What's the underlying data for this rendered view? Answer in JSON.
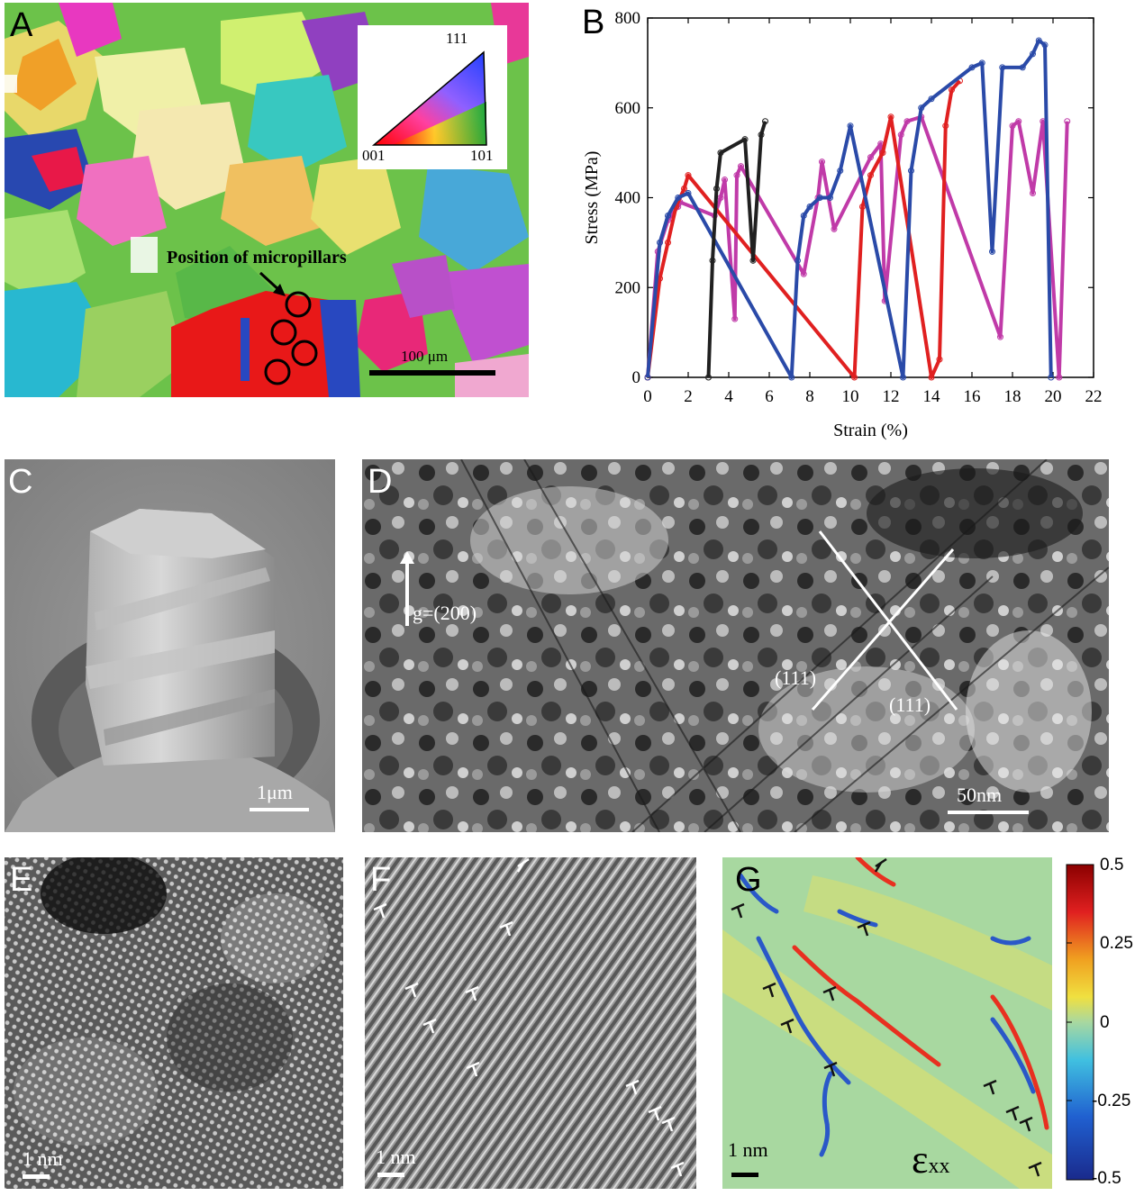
{
  "panels": {
    "A": {
      "label": "A",
      "annotation": "Position of micropillars",
      "scalebar": "100 μm",
      "ipf": {
        "top": "111",
        "left": "001",
        "right": "101"
      }
    },
    "B": {
      "label": "B"
    },
    "C": {
      "label": "C",
      "scalebar": "1μm"
    },
    "D": {
      "label": "D",
      "g_vector": "g=(200)",
      "plane1": "(111)",
      "plane2": "(111)",
      "scalebar": "50nm"
    },
    "E": {
      "label": "E",
      "scalebar": "1 nm"
    },
    "F": {
      "label": "F",
      "scalebar": "1 nm"
    },
    "G": {
      "label": "G",
      "scalebar": "1 nm",
      "symbol": "ε",
      "symbol_sub": "xx",
      "colorbar_ticks": [
        "0.5",
        "0.25",
        "0",
        "-0.25",
        "-0.5"
      ],
      "colors": {
        "high": "#8b0000",
        "mid": "#a8d8a0",
        "low": "#1a2a8c"
      }
    }
  },
  "chart_data": {
    "type": "line",
    "title": "",
    "xlabel": "Strain (%)",
    "ylabel": "Stress (MPa)",
    "xlim": [
      0,
      22
    ],
    "ylim": [
      0,
      800
    ],
    "xticks": [
      "0",
      "2",
      "4",
      "6",
      "8",
      "10",
      "12",
      "14",
      "16",
      "18",
      "20",
      "22"
    ],
    "yticks": [
      "0",
      "200",
      "400",
      "600",
      "800"
    ],
    "grid": false,
    "legend": "none",
    "series": [
      {
        "color": "#c03aa8",
        "x": [
          0,
          0.5,
          1.0,
          1.5,
          1.6,
          3.3,
          3.6,
          3.8,
          4.3,
          4.4,
          4.6,
          7.7,
          8.4,
          8.6,
          9.2,
          11.0,
          11.5,
          11.7,
          12.5,
          12.8,
          13.5,
          17.4,
          18.0,
          18.3,
          19.0,
          19.5,
          20.3,
          20.7
        ],
        "y": [
          0,
          280,
          350,
          380,
          390,
          360,
          400,
          440,
          130,
          450,
          470,
          230,
          400,
          480,
          330,
          490,
          520,
          170,
          540,
          570,
          580,
          90,
          560,
          570,
          410,
          570,
          0,
          570
        ]
      },
      {
        "color": "#e02020",
        "x": [
          0,
          0.6,
          1.0,
          1.4,
          1.8,
          2.0,
          10.2,
          10.6,
          11.0,
          11.6,
          12.0,
          14.0,
          14.4,
          14.7,
          15.0,
          15.4
        ],
        "y": [
          0,
          220,
          300,
          380,
          420,
          450,
          0,
          380,
          450,
          500,
          580,
          0,
          40,
          560,
          640,
          660
        ]
      },
      {
        "color": "#2a4aa8",
        "x": [
          0,
          0.6,
          1.0,
          1.5,
          2.0,
          7.1,
          7.4,
          7.7,
          8.0,
          8.5,
          9.0,
          9.5,
          10.0,
          12.6,
          13.0,
          13.5,
          14.0,
          16.0,
          16.5,
          17.0,
          17.5,
          18.5,
          19.0,
          19.3,
          19.6,
          19.9
        ],
        "y": [
          0,
          300,
          360,
          400,
          410,
          0,
          260,
          360,
          380,
          400,
          400,
          460,
          560,
          0,
          460,
          600,
          620,
          690,
          700,
          280,
          690,
          690,
          720,
          750,
          740,
          0
        ]
      },
      {
        "color": "#202020",
        "x": [
          3.0,
          3.2,
          3.4,
          3.6,
          4.8,
          5.2,
          5.6,
          5.8
        ],
        "y": [
          0,
          260,
          420,
          500,
          530,
          260,
          540,
          570
        ]
      }
    ]
  }
}
